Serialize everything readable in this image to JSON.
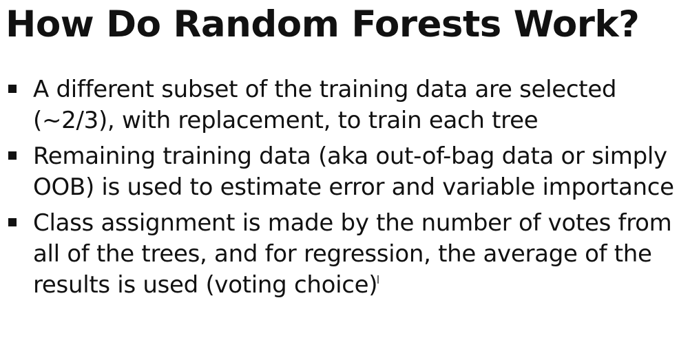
{
  "slide": {
    "title": "How Do Random Forests Work?",
    "bullets": [
      "A different subset of the training data are selected (~2/3), with replacement, to train each tree",
      "Remaining training data (aka out-of-bag data or simply OOB) is used to estimate error and variable importance",
      "Class assignment is made by the number of votes from all of the trees, and for regression, the average of the results is used (voting choice)"
    ]
  }
}
